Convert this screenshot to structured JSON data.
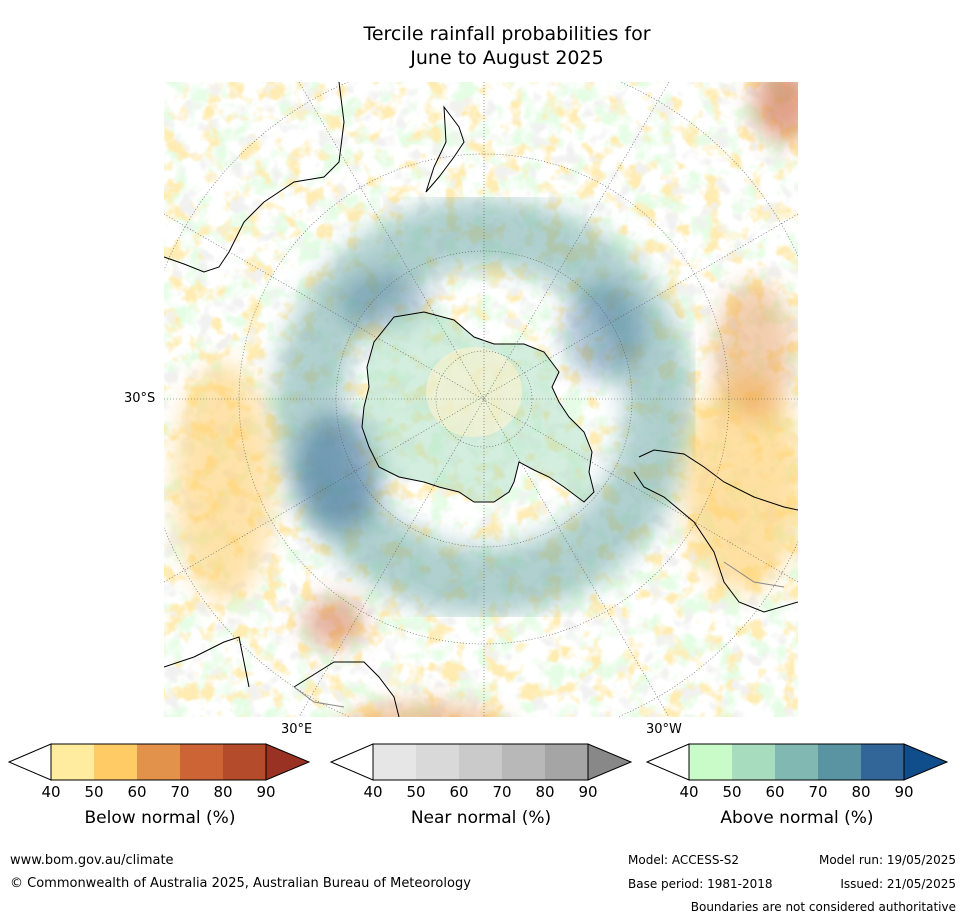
{
  "title": {
    "line1": "Tercile rainfall probabilities for",
    "line2": "June to August 2025"
  },
  "map": {
    "projection": "south-polar-stereographic",
    "lat_label": "30°S",
    "lon_labels": [
      "30°E",
      "30°W"
    ]
  },
  "colorbars": [
    {
      "name": "Below normal (%)",
      "ticks": [
        "40",
        "50",
        "60",
        "70",
        "80",
        "90"
      ],
      "colors": [
        "#ffffff",
        "#ffec9f",
        "#ffcb65",
        "#e2924a",
        "#cc6435",
        "#b44c2c",
        "#993222"
      ]
    },
    {
      "name": "Near normal (%)",
      "ticks": [
        "40",
        "50",
        "60",
        "70",
        "80",
        "90"
      ],
      "colors": [
        "#ffffff",
        "#e6e6e6",
        "#d9d9d9",
        "#cacaca",
        "#b8b8b8",
        "#a5a5a5",
        "#888888"
      ]
    },
    {
      "name": "Above normal (%)",
      "ticks": [
        "40",
        "50",
        "60",
        "70",
        "80",
        "90"
      ],
      "colors": [
        "#ffffff",
        "#c8fbc8",
        "#a7dcbf",
        "#81b9b2",
        "#5a93a1",
        "#336698",
        "#104e8b"
      ]
    }
  ],
  "footer": {
    "website": "www.bom.gov.au/climate",
    "copyright": "© Commonwealth of Australia 2025, Australian Bureau of Meteorology",
    "model": "Model: ACCESS-S2",
    "base_period": "Base period: 1981-2018",
    "model_run": "Model run: 19/05/2025",
    "issued": "Issued: 21/05/2025",
    "disclaimer": "Boundaries are not considered authoritative"
  }
}
